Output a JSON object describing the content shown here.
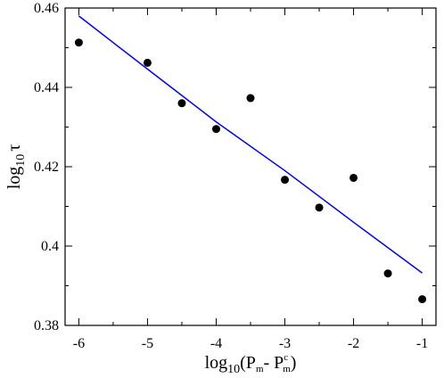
{
  "chart_data": {
    "type": "scatter",
    "xlim": [
      -6.2,
      -0.8
    ],
    "ylim": [
      0.38,
      0.46
    ],
    "x_ticks": [
      -6,
      -5,
      -4,
      -3,
      -2,
      -1
    ],
    "x_tick_labels": [
      "-6",
      "-5",
      "-4",
      "-3",
      "-2",
      "-1"
    ],
    "y_ticks": [
      0.38,
      0.4,
      0.42,
      0.44,
      0.46
    ],
    "y_tick_labels": [
      "0.38",
      "0.4",
      "0.42",
      "0.44",
      "0.46"
    ],
    "xlabel": {
      "prefix": "log",
      "sub1": "10",
      "open": "(P",
      "sub2": "m",
      "mid": "- P",
      "sup": "c",
      "sub3": "m",
      "close": ")"
    },
    "ylabel": {
      "prefix": "log",
      "sub": "10",
      "symbol": "τ"
    },
    "grid": false,
    "series": [
      {
        "kind": "points",
        "color": "#000000",
        "x": [
          -6,
          -5,
          -4.5,
          -4,
          -3.5,
          -3,
          -2.5,
          -2,
          -1.5,
          -1
        ],
        "y": [
          0.4513,
          0.4462,
          0.436,
          0.4295,
          0.4373,
          0.4167,
          0.4097,
          0.4172,
          0.3931,
          0.3866
        ]
      },
      {
        "kind": "fit-line",
        "color": "#0000ff",
        "x": [
          -6,
          -5,
          -4,
          -3,
          -2,
          -1
        ],
        "y": [
          0.458,
          0.4446,
          0.4313,
          0.419,
          0.406,
          0.3932
        ]
      }
    ]
  }
}
